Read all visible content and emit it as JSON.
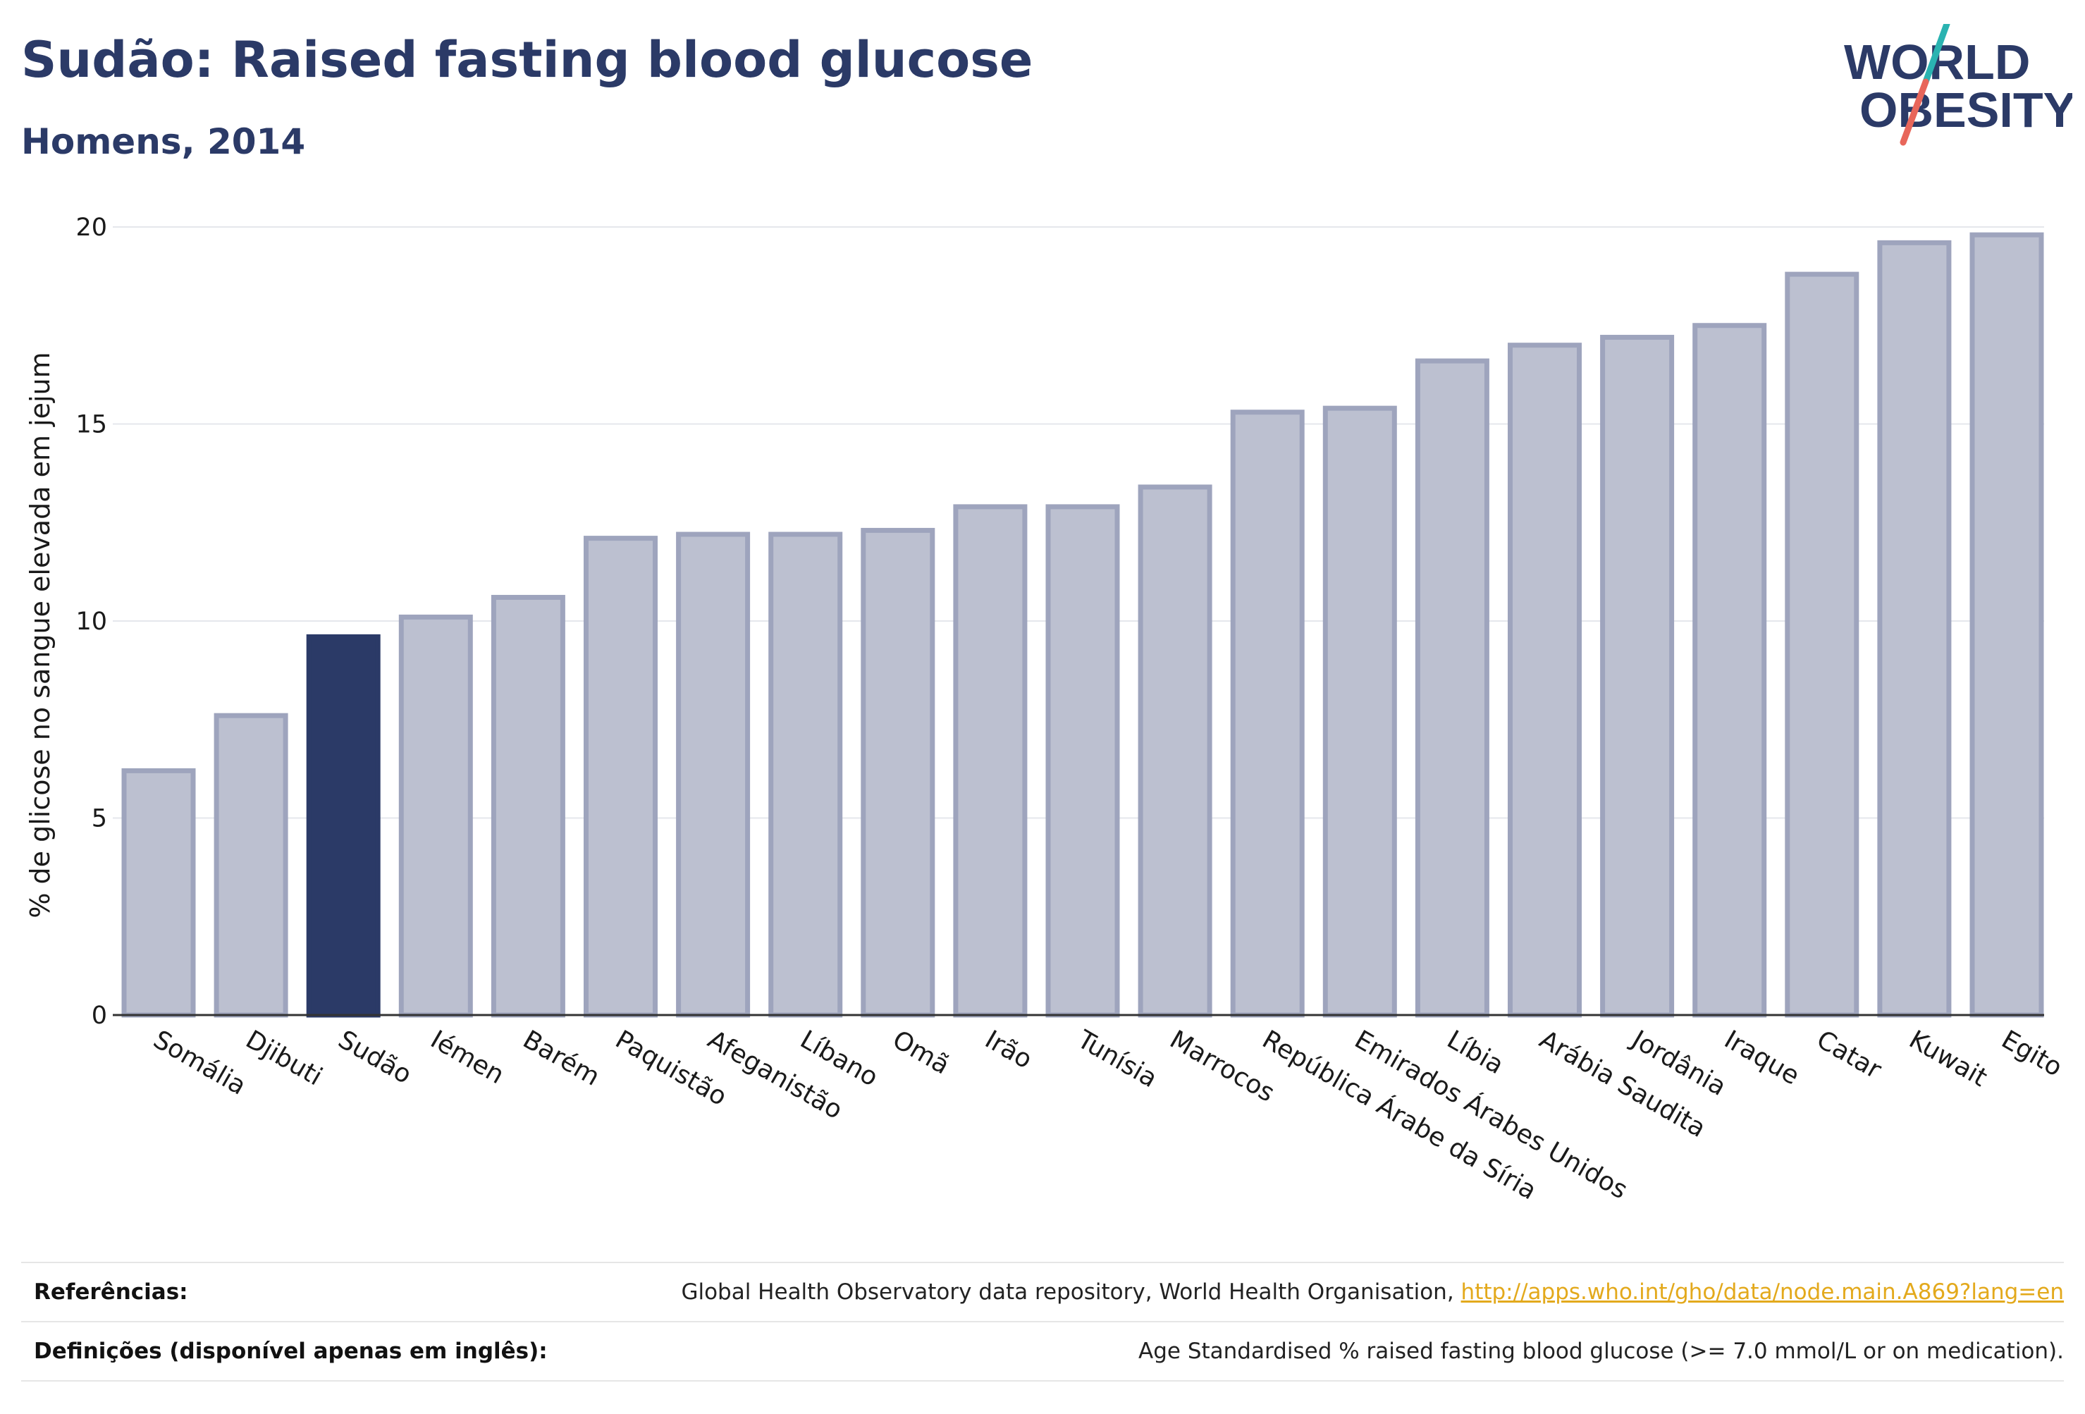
{
  "header": {
    "title": "Sudão: Raised fasting blood glucose",
    "subtitle": "Homens, 2014"
  },
  "logo": {
    "line1": "WORLD",
    "line2": "OBESITY",
    "name": "world-obesity-logo"
  },
  "colors": {
    "highlight": "#2b3a67",
    "bar_fill": "#bcc0d0",
    "bar_stroke": "#9ea4bd",
    "grid": "#e5e7ec",
    "title": "#2b3a67",
    "link": "#e3a91c",
    "logo_slash_teal": "#2ab3b1",
    "logo_slash_red": "#e8665a"
  },
  "chart_data": {
    "type": "bar",
    "title": "Sudão: Raised fasting blood glucose",
    "subtitle": "Homens, 2014",
    "ylabel": "% de glicose no sangue elevada em jejum",
    "xlabel": "",
    "ylim": [
      0,
      20
    ],
    "yticks": [
      0,
      5,
      10,
      15,
      20
    ],
    "grid": true,
    "highlight_category": "Sudão",
    "categories": [
      "Somália",
      "Djibuti",
      "Sudão",
      "Iémen",
      "Barém",
      "Paquistão",
      "Afeganistão",
      "Líbano",
      "Omã",
      "Irão",
      "Tunísia",
      "Marrocos",
      "República Árabe da Síria",
      "Emirados Árabes Unidos",
      "Líbia",
      "Arábia Saudita",
      "Jordânia",
      "Iraque",
      "Catar",
      "Kuwait",
      "Egito"
    ],
    "values": [
      6.2,
      7.6,
      9.6,
      10.1,
      10.6,
      12.1,
      12.2,
      12.2,
      12.3,
      12.9,
      12.9,
      13.4,
      15.3,
      15.4,
      16.6,
      17.0,
      17.2,
      17.5,
      18.8,
      19.6,
      19.8
    ]
  },
  "footer": {
    "references_label": "Referências:",
    "references_text": "Global Health Observatory data repository, World Health Organisation, ",
    "references_link": "http://apps.who.int/gho/data/node.main.A869?lang=en",
    "definitions_label": "Definições (disponível apenas em inglês):",
    "definitions_text": "Age Standardised % raised fasting blood glucose (>= 7.0 mmol/L or on medication)."
  }
}
